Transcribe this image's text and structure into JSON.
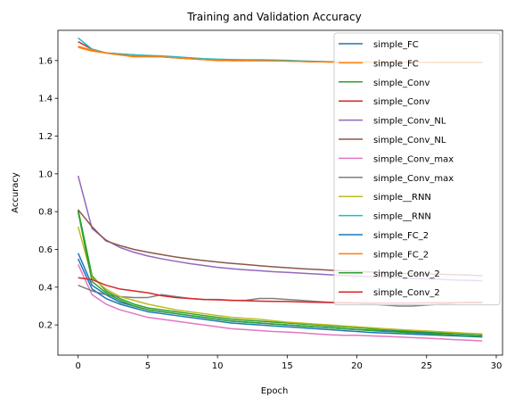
{
  "chart_data": {
    "type": "line",
    "title": "Training and Validation Accuracy",
    "xlabel": "Epoch",
    "ylabel": "Accuracy",
    "xlim": [
      -1.45,
      30.45
    ],
    "ylim": [
      0.04,
      1.76
    ],
    "xticks": [
      0,
      5,
      10,
      15,
      20,
      25,
      30
    ],
    "yticks": [
      0.2,
      0.4,
      0.6,
      0.8,
      1.0,
      1.2,
      1.4,
      1.6
    ],
    "ytick_labels": [
      "0.2",
      "0.4",
      "0.6",
      "0.8",
      "1.0",
      "1.2",
      "1.4",
      "1.6"
    ],
    "grid": false,
    "legend_position": "upper-right",
    "x": [
      0,
      1,
      2,
      3,
      4,
      5,
      6,
      7,
      8,
      9,
      10,
      11,
      12,
      13,
      14,
      15,
      16,
      17,
      18,
      19,
      20,
      21,
      22,
      23,
      24,
      25,
      26,
      27,
      28,
      29
    ],
    "series": [
      {
        "name": "simple_FC",
        "color": "#1f77b4",
        "values": [
          0.58,
          0.41,
          0.36,
          0.32,
          0.3,
          0.28,
          0.27,
          0.26,
          0.25,
          0.24,
          0.23,
          0.22,
          0.215,
          0.21,
          0.205,
          0.2,
          0.195,
          0.19,
          0.185,
          0.18,
          0.175,
          0.172,
          0.169,
          0.166,
          0.163,
          0.16,
          0.157,
          0.154,
          0.151,
          0.148
        ]
      },
      {
        "name": "simple_FC",
        "color": "#ff7f0e",
        "values": [
          1.67,
          1.65,
          1.64,
          1.63,
          1.62,
          1.62,
          1.62,
          1.615,
          1.61,
          1.605,
          1.6,
          1.6,
          1.6,
          1.6,
          1.6,
          1.598,
          1.596,
          1.594,
          1.593,
          1.592,
          1.592,
          1.591,
          1.591,
          1.591,
          1.591,
          1.591,
          1.59,
          1.59,
          1.59,
          1.59
        ]
      },
      {
        "name": "simple_Conv",
        "color": "#2ca02c",
        "values": [
          0.81,
          0.46,
          0.38,
          0.34,
          0.31,
          0.29,
          0.28,
          0.27,
          0.26,
          0.25,
          0.24,
          0.23,
          0.225,
          0.22,
          0.215,
          0.21,
          0.205,
          0.2,
          0.195,
          0.19,
          0.185,
          0.18,
          0.176,
          0.172,
          0.168,
          0.164,
          0.16,
          0.156,
          0.152,
          0.148
        ]
      },
      {
        "name": "simple_Conv",
        "color": "#d62728",
        "values": [
          1.7,
          1.66,
          1.64,
          1.635,
          1.63,
          1.625,
          1.62,
          1.615,
          1.61,
          1.605,
          1.603,
          1.6,
          1.6,
          1.6,
          1.6,
          1.598,
          1.596,
          1.594,
          1.593,
          1.592,
          1.592,
          1.591,
          1.591,
          1.591,
          1.591,
          1.591,
          1.59,
          1.59,
          1.59,
          1.59
        ]
      },
      {
        "name": "simple_Conv_NL",
        "color": "#9467bd",
        "values": [
          0.99,
          0.71,
          0.65,
          0.61,
          0.585,
          0.565,
          0.55,
          0.537,
          0.525,
          0.515,
          0.505,
          0.498,
          0.492,
          0.487,
          0.482,
          0.478,
          0.474,
          0.47,
          0.466,
          0.462,
          0.459,
          0.456,
          0.453,
          0.45,
          0.447,
          0.444,
          0.441,
          0.438,
          0.436,
          0.434
        ]
      },
      {
        "name": "simple_Conv_NL",
        "color": "#8c564b",
        "values": [
          0.81,
          0.72,
          0.645,
          0.62,
          0.6,
          0.585,
          0.572,
          0.56,
          0.55,
          0.541,
          0.533,
          0.526,
          0.52,
          0.514,
          0.508,
          0.503,
          0.498,
          0.494,
          0.49,
          0.486,
          0.483,
          0.48,
          0.477,
          0.474,
          0.472,
          0.47,
          0.468,
          0.466,
          0.464,
          0.46
        ]
      },
      {
        "name": "simple_Conv_max",
        "color": "#e377c2",
        "values": [
          0.52,
          0.36,
          0.31,
          0.28,
          0.26,
          0.24,
          0.23,
          0.22,
          0.21,
          0.2,
          0.19,
          0.18,
          0.175,
          0.17,
          0.165,
          0.162,
          0.158,
          0.153,
          0.148,
          0.145,
          0.145,
          0.142,
          0.139,
          0.136,
          0.133,
          0.13,
          0.126,
          0.122,
          0.119,
          0.115
        ]
      },
      {
        "name": "simple_Conv_max",
        "color": "#7f7f7f",
        "values": [
          0.41,
          0.38,
          0.36,
          0.35,
          0.345,
          0.345,
          0.36,
          0.35,
          0.34,
          0.335,
          0.335,
          0.33,
          0.33,
          0.34,
          0.34,
          0.335,
          0.33,
          0.325,
          0.32,
          0.315,
          0.315,
          0.31,
          0.305,
          0.3,
          0.3,
          0.305,
          0.31,
          0.315,
          0.32,
          0.32
        ]
      },
      {
        "name": "simple__RNN",
        "color": "#bcbd22",
        "values": [
          0.72,
          0.45,
          0.39,
          0.35,
          0.33,
          0.31,
          0.295,
          0.28,
          0.27,
          0.26,
          0.25,
          0.24,
          0.235,
          0.23,
          0.222,
          0.215,
          0.21,
          0.205,
          0.2,
          0.195,
          0.19,
          0.185,
          0.18,
          0.176,
          0.172,
          0.168,
          0.164,
          0.16,
          0.156,
          0.152
        ]
      },
      {
        "name": "simple__RNN",
        "color": "#17becf",
        "values": [
          1.72,
          1.66,
          1.64,
          1.635,
          1.63,
          1.627,
          1.624,
          1.62,
          1.615,
          1.61,
          1.607,
          1.605,
          1.604,
          1.604,
          1.603,
          1.601,
          1.598,
          1.596,
          1.594,
          1.593,
          1.592,
          1.592,
          1.591,
          1.591,
          1.591,
          1.591,
          1.591,
          1.591,
          1.591,
          1.591
        ]
      },
      {
        "name": "simple_FC_2",
        "color": "#1f77b4",
        "values": [
          0.55,
          0.39,
          0.34,
          0.31,
          0.29,
          0.27,
          0.26,
          0.25,
          0.24,
          0.23,
          0.22,
          0.21,
          0.205,
          0.2,
          0.195,
          0.19,
          0.185,
          0.18,
          0.175,
          0.17,
          0.165,
          0.16,
          0.157,
          0.154,
          0.151,
          0.148,
          0.145,
          0.142,
          0.139,
          0.136
        ]
      },
      {
        "name": "simple_FC_2",
        "color": "#ff7f0e",
        "values": [
          1.675,
          1.655,
          1.64,
          1.63,
          1.625,
          1.62,
          1.62,
          1.615,
          1.61,
          1.605,
          1.602,
          1.6,
          1.6,
          1.599,
          1.598,
          1.597,
          1.595,
          1.594,
          1.593,
          1.592,
          1.592,
          1.591,
          1.591,
          1.591,
          1.591,
          1.59,
          1.59,
          1.59,
          1.59,
          1.59
        ]
      },
      {
        "name": "simple_Conv_2",
        "color": "#2ca02c",
        "values": [
          0.8,
          0.43,
          0.37,
          0.33,
          0.3,
          0.28,
          0.27,
          0.26,
          0.25,
          0.24,
          0.23,
          0.22,
          0.215,
          0.21,
          0.205,
          0.2,
          0.195,
          0.19,
          0.185,
          0.18,
          0.175,
          0.17,
          0.166,
          0.162,
          0.158,
          0.154,
          0.15,
          0.146,
          0.143,
          0.14
        ]
      },
      {
        "name": "simple_Conv_2",
        "color": "#d62728",
        "values": [
          0.45,
          0.44,
          0.41,
          0.39,
          0.38,
          0.37,
          0.355,
          0.345,
          0.34,
          0.335,
          0.333,
          0.33,
          0.328,
          0.326,
          0.325,
          0.324,
          0.322,
          0.32,
          0.319,
          0.318,
          0.317,
          0.316,
          0.316,
          0.316,
          0.316,
          0.317,
          0.317,
          0.318,
          0.318,
          0.318
        ]
      }
    ]
  }
}
